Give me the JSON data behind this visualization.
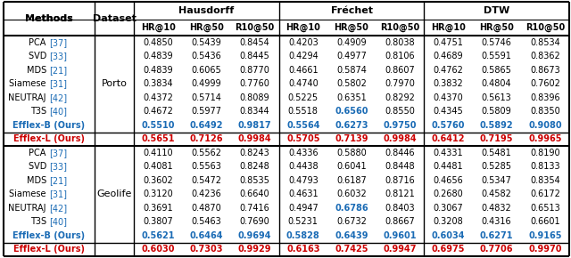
{
  "col_groups": [
    "Hausdorff",
    "Fréchet",
    "DTW"
  ],
  "sub_cols": [
    "HR@10",
    "HR@50",
    "R10@50"
  ],
  "porto_methods": [
    [
      "PCA ",
      "[37]"
    ],
    [
      "SVD ",
      "[33]"
    ],
    [
      "MDS ",
      "[21]"
    ],
    [
      "Siamese ",
      "[31]"
    ],
    [
      "NEUTRAJ ",
      "[42]"
    ],
    [
      "T3S ",
      "[40]"
    ]
  ],
  "porto_data": [
    [
      0.485,
      0.5439,
      0.8454,
      0.4203,
      0.4909,
      0.8038,
      0.4751,
      0.5746,
      0.8534
    ],
    [
      0.4839,
      0.5436,
      0.8445,
      0.4294,
      0.4977,
      0.8106,
      0.4689,
      0.5591,
      0.8362
    ],
    [
      0.4839,
      0.6065,
      0.877,
      0.4661,
      0.5874,
      0.8607,
      0.4762,
      0.5865,
      0.8673
    ],
    [
      0.3834,
      0.4999,
      0.776,
      0.474,
      0.5802,
      0.797,
      0.3832,
      0.4804,
      0.7602
    ],
    [
      0.4372,
      0.5714,
      0.8089,
      0.5225,
      0.6351,
      0.8292,
      0.437,
      0.5613,
      0.8396
    ],
    [
      0.4672,
      0.5977,
      0.8344,
      0.5518,
      0.656,
      0.855,
      0.4345,
      0.5809,
      0.835
    ]
  ],
  "porto_highlight_blue": [
    [
      false,
      false,
      false,
      false,
      false,
      false,
      false,
      false,
      false
    ],
    [
      false,
      false,
      false,
      false,
      false,
      false,
      false,
      false,
      false
    ],
    [
      false,
      false,
      false,
      false,
      false,
      false,
      false,
      false,
      false
    ],
    [
      false,
      false,
      false,
      false,
      false,
      false,
      false,
      false,
      false
    ],
    [
      false,
      false,
      false,
      false,
      false,
      false,
      false,
      false,
      false
    ],
    [
      false,
      false,
      false,
      false,
      true,
      false,
      false,
      false,
      false
    ]
  ],
  "porto_efflex_b": [
    0.551,
    0.6492,
    0.9817,
    0.5564,
    0.6273,
    0.975,
    0.576,
    0.5892,
    0.908
  ],
  "porto_efflex_l": [
    0.5651,
    0.7126,
    0.9984,
    0.5705,
    0.7139,
    0.9984,
    0.6412,
    0.7195,
    0.9965
  ],
  "geolife_methods": [
    [
      "PCA ",
      "[37]"
    ],
    [
      "SVD ",
      "[33]"
    ],
    [
      "MDS ",
      "[21]"
    ],
    [
      "Siamese ",
      "[31]"
    ],
    [
      "NEUTRAJ ",
      "[42]"
    ],
    [
      "T3S ",
      "[40]"
    ]
  ],
  "geolife_data": [
    [
      0.411,
      0.5562,
      0.8243,
      0.4336,
      0.588,
      0.8446,
      0.4331,
      0.5481,
      0.819
    ],
    [
      0.4081,
      0.5563,
      0.8248,
      0.4438,
      0.6041,
      0.8448,
      0.4481,
      0.5285,
      0.8133
    ],
    [
      0.3602,
      0.5472,
      0.8535,
      0.4793,
      0.6187,
      0.8716,
      0.4656,
      0.5347,
      0.8354
    ],
    [
      0.312,
      0.4236,
      0.664,
      0.4631,
      0.6032,
      0.8121,
      0.268,
      0.4582,
      0.6172
    ],
    [
      0.3691,
      0.487,
      0.7416,
      0.4947,
      0.6786,
      0.8403,
      0.3067,
      0.4832,
      0.6513
    ],
    [
      0.3807,
      0.5463,
      0.769,
      0.5231,
      0.6732,
      0.8667,
      0.3208,
      0.4316,
      0.6601
    ]
  ],
  "geolife_highlight_blue": [
    [
      false,
      false,
      false,
      false,
      false,
      false,
      false,
      false,
      false
    ],
    [
      false,
      false,
      false,
      false,
      false,
      false,
      false,
      false,
      false
    ],
    [
      false,
      false,
      false,
      false,
      false,
      false,
      false,
      false,
      false
    ],
    [
      false,
      false,
      false,
      false,
      false,
      false,
      false,
      false,
      false
    ],
    [
      false,
      false,
      false,
      false,
      true,
      false,
      false,
      false,
      false
    ],
    [
      false,
      false,
      false,
      false,
      false,
      false,
      false,
      false,
      false
    ]
  ],
  "geolife_efflex_b": [
    0.5621,
    0.6464,
    0.9694,
    0.5828,
    0.6439,
    0.9601,
    0.6034,
    0.6271,
    0.9165
  ],
  "geolife_efflex_l": [
    0.603,
    0.7303,
    0.9929,
    0.6163,
    0.7425,
    0.9947,
    0.6975,
    0.7706,
    0.997
  ],
  "blue_color": "#1a6bb5",
  "red_color": "#cc0000",
  "black_color": "#000000",
  "bg_color": "#FFFFFF"
}
